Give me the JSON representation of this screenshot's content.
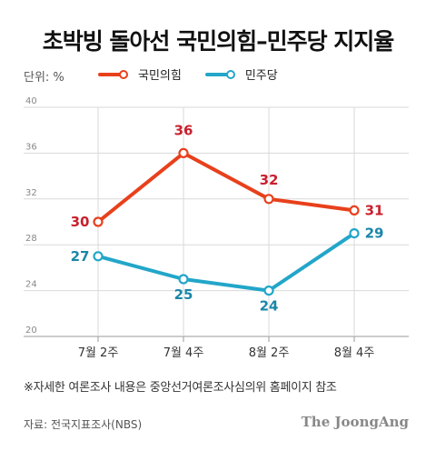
{
  "title": "초박빙 돌아선 국민의힘–민주당 지지율",
  "unit_label": "단위: %",
  "note": "※자세한 여론조사 내용은 중앙선거여론조사심의위 홈페이지 참조",
  "source": "자료: 전국지표조사(NBS)",
  "brand": "The JoongAng",
  "colors": {
    "ppp": "#E8401C",
    "dem": "#22A6C9",
    "ppp_label": "#C8202E",
    "dem_label": "#1A86A8",
    "grid": "#D9D9D9",
    "axis": "#999999"
  },
  "chart_data": {
    "type": "line",
    "categories": [
      "7월 2주",
      "7월 4주",
      "8월 2주",
      "8월 4주"
    ],
    "series": [
      {
        "name": "국민의힘",
        "values": [
          30,
          36,
          32,
          31
        ]
      },
      {
        "name": "민주당",
        "values": [
          27,
          25,
          24,
          29
        ]
      }
    ],
    "ylim": [
      20,
      40
    ],
    "yticks": [
      20,
      24,
      28,
      32,
      36,
      40
    ],
    "grid": true,
    "legend": "top"
  }
}
